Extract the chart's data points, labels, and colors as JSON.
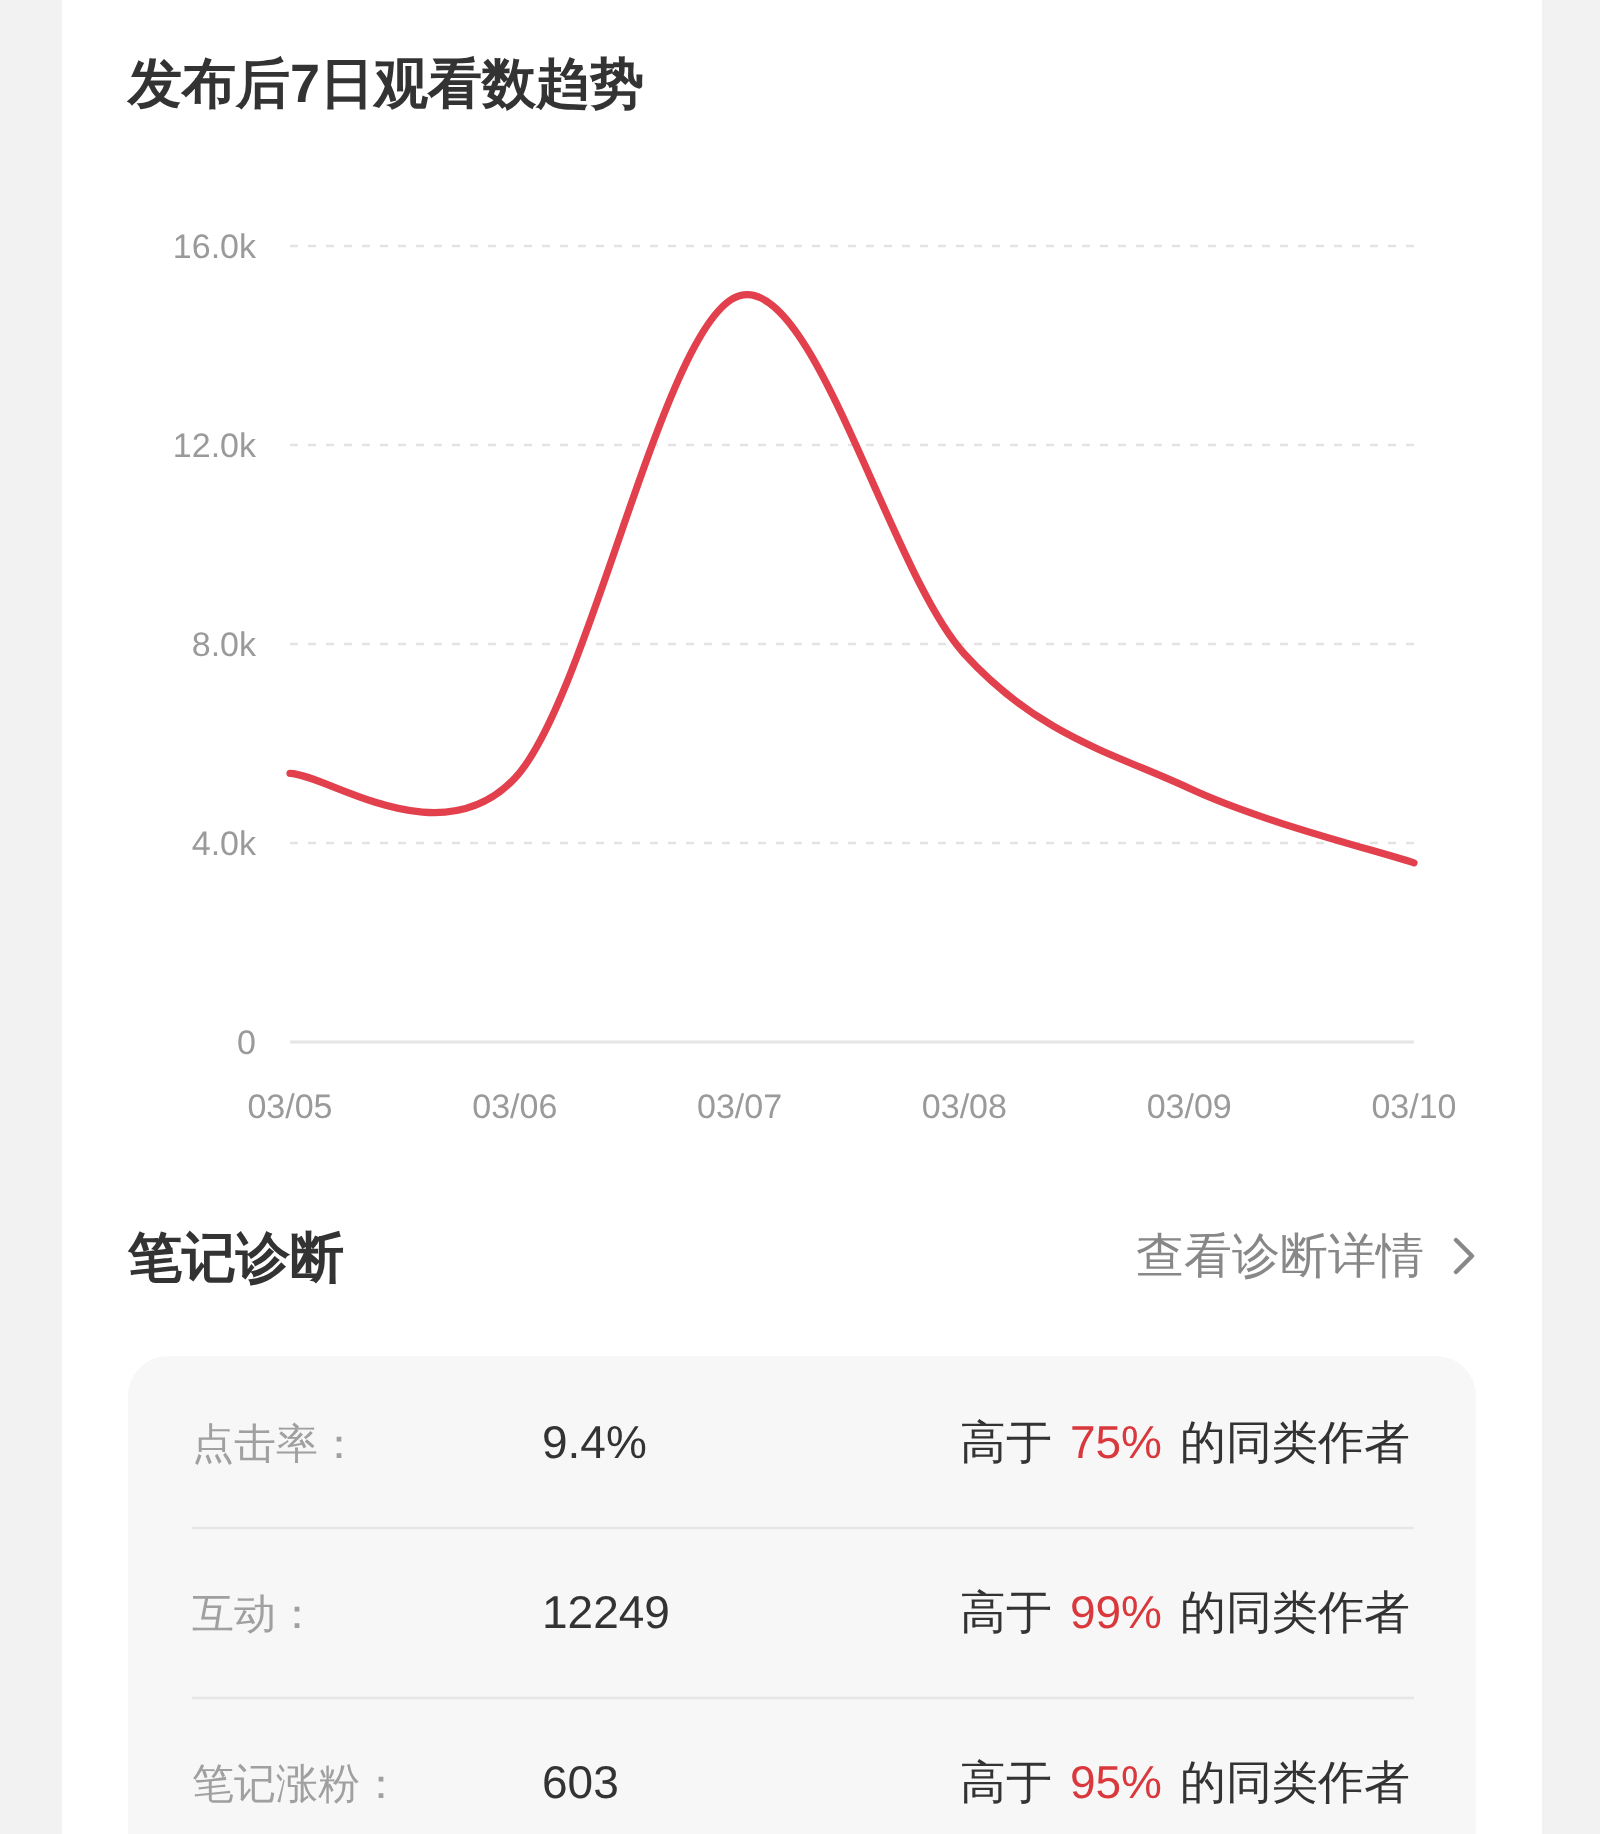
{
  "chart_data": [
    {
      "type": "line",
      "title": "发布后7日观看数趋势",
      "categories": [
        "03/05",
        "03/06",
        "03/07",
        "03/08",
        "03/09",
        "03/10"
      ],
      "values": [
        5400,
        5300,
        15000,
        7800,
        5100,
        3600
      ],
      "color": "#e2404d",
      "ylim": [
        0,
        16000
      ],
      "yticks": [
        0,
        {
          "value": 4000,
          "label": "4.0k"
        },
        {
          "value": 8000,
          "label": "8.0k"
        },
        {
          "value": 12000,
          "label": "12.0k"
        },
        {
          "value": 16000,
          "label": "16.0k"
        }
      ],
      "grid": "y"
    },
    {
      "type": "other",
      "title": "笔记诊断",
      "annotations": [
        "查看诊断详情",
        "点击率：",
        "9.4%",
        "高于",
        "75%",
        "的同类作者",
        "互动：",
        "12249",
        "高于",
        "99%",
        "的同类作者",
        "笔记涨粉：",
        "603",
        "高于",
        "95%",
        "的同类作者"
      ]
    }
  ]
}
